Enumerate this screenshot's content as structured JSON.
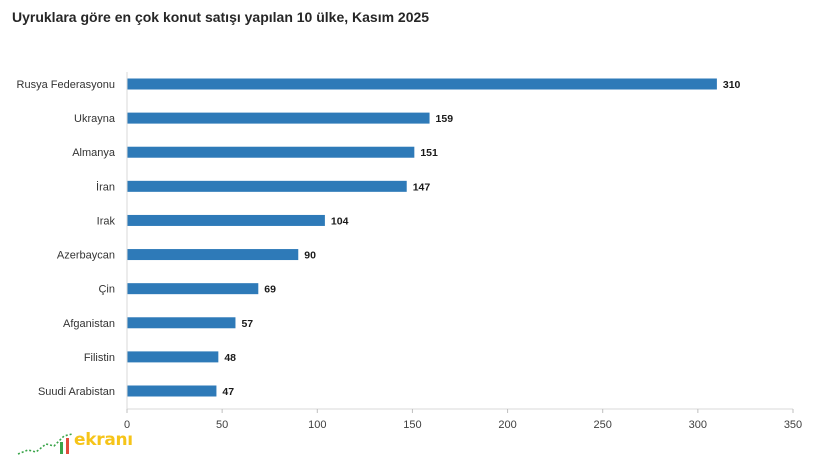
{
  "title": "Uyruklara göre en çok konut satışı yapılan 10 ülke, Kasım 2025",
  "chart_data": {
    "type": "bar",
    "orientation": "horizontal",
    "title": "Uyruklara göre en çok konut satışı yapılan 10 ülke, Kasım 2025",
    "categories": [
      "Rusya Federasyonu",
      "Ukrayna",
      "Almanya",
      "İran",
      "Irak",
      "Azerbaycan",
      "Çin",
      "Afganistan",
      "Filistin",
      "Suudi Arabistan"
    ],
    "values": [
      310,
      159,
      151,
      147,
      104,
      90,
      69,
      57,
      48,
      47
    ],
    "xlim": [
      0,
      350
    ],
    "xticks": [
      0,
      50,
      100,
      150,
      200,
      250,
      300,
      350
    ],
    "bar_color": "#2e7ab8",
    "grid": false,
    "data_labels": true
  },
  "watermark": {
    "text": "ekranı",
    "color": "#f6c419"
  }
}
